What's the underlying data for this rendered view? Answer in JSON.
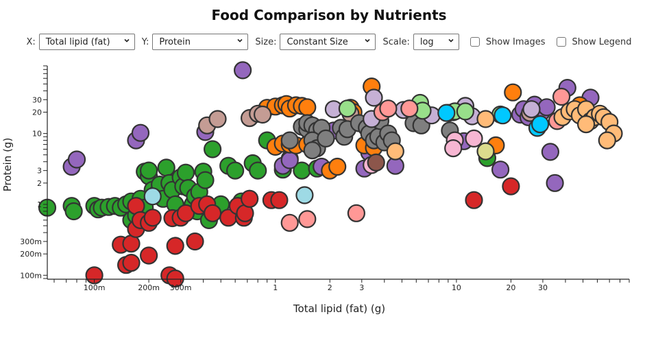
{
  "page": {
    "title": "Food Comparison by Nutrients"
  },
  "controls": {
    "x_label": "X:",
    "x_value": "Total lipid (fat)",
    "y_label": "Y:",
    "y_value": "Protein",
    "size_label": "Size:",
    "size_value": "Constant Size",
    "scale_label": "Scale:",
    "scale_value": "log",
    "show_images_label": "Show Images",
    "show_images_checked": false,
    "show_legend_label": "Show Legend",
    "show_legend_checked": false
  },
  "chart_data": {
    "type": "scatter",
    "title": "Food Comparison by Nutrients",
    "xlabel": "Total lipid (fat) (g)",
    "ylabel": "Protein (g)",
    "xscale": "log",
    "yscale": "log",
    "xlim": [
      0.055,
      90
    ],
    "ylim": [
      0.09,
      90
    ],
    "x_ticks": [
      {
        "value": 0.1,
        "label": "100m"
      },
      {
        "value": 0.2,
        "label": "200m"
      },
      {
        "value": 0.3,
        "label": "300m"
      },
      {
        "value": 1,
        "label": "1"
      },
      {
        "value": 2,
        "label": "2"
      },
      {
        "value": 3,
        "label": "3"
      },
      {
        "value": 10,
        "label": "10"
      },
      {
        "value": 20,
        "label": "20"
      },
      {
        "value": 30,
        "label": "30"
      }
    ],
    "y_ticks": [
      {
        "value": 0.1,
        "label": "100m"
      },
      {
        "value": 0.2,
        "label": "200m"
      },
      {
        "value": 0.3,
        "label": "300m"
      },
      {
        "value": 1,
        "label": "1"
      },
      {
        "value": 2,
        "label": "2"
      },
      {
        "value": 3,
        "label": "3"
      },
      {
        "value": 10,
        "label": "10"
      },
      {
        "value": 20,
        "label": "20"
      },
      {
        "value": 30,
        "label": "30"
      }
    ],
    "grid": false,
    "legend": "hidden",
    "marker": {
      "stroke": "#333333",
      "constant_size": true
    },
    "groups": [
      {
        "name": "group-green",
        "color": "#2ca02c",
        "points": [
          [
            0.055,
            0.9
          ],
          [
            0.075,
            0.95
          ],
          [
            0.077,
            0.8
          ],
          [
            0.1,
            0.95
          ],
          [
            0.105,
            0.85
          ],
          [
            0.11,
            0.9
          ],
          [
            0.12,
            0.92
          ],
          [
            0.13,
            0.95
          ],
          [
            0.14,
            0.9
          ],
          [
            0.15,
            1.0
          ],
          [
            0.16,
            0.6
          ],
          [
            0.16,
            1.1
          ],
          [
            0.17,
            0.7
          ],
          [
            0.18,
            1.2
          ],
          [
            0.19,
            0.9
          ],
          [
            0.19,
            2.9
          ],
          [
            0.2,
            2.5
          ],
          [
            0.2,
            3.0
          ],
          [
            0.21,
            1.6
          ],
          [
            0.22,
            1.4
          ],
          [
            0.23,
            1.9
          ],
          [
            0.24,
            1.2
          ],
          [
            0.25,
            3.3
          ],
          [
            0.26,
            2.0
          ],
          [
            0.27,
            1.6
          ],
          [
            0.28,
            1.0
          ],
          [
            0.3,
            2.4
          ],
          [
            0.31,
            1.8
          ],
          [
            0.32,
            2.8
          ],
          [
            0.33,
            1.7
          ],
          [
            0.35,
            1.0
          ],
          [
            0.36,
            1.3
          ],
          [
            0.37,
            0.8
          ],
          [
            0.38,
            1.5
          ],
          [
            0.4,
            2.9
          ],
          [
            0.41,
            2.2
          ],
          [
            0.43,
            0.6
          ],
          [
            0.45,
            6.0
          ],
          [
            0.5,
            1.0
          ],
          [
            0.55,
            3.5
          ],
          [
            0.6,
            3.0
          ],
          [
            0.65,
            1.1
          ],
          [
            0.72,
            1.2
          ],
          [
            0.75,
            3.8
          ],
          [
            0.8,
            3.0
          ],
          [
            0.9,
            8.0
          ],
          [
            1.1,
            3.1
          ],
          [
            1.2,
            4.4
          ],
          [
            1.4,
            3.0
          ],
          [
            1.7,
            3.2
          ],
          [
            14.8,
            4.5
          ]
        ]
      },
      {
        "name": "group-red",
        "color": "#d62728",
        "points": [
          [
            0.1,
            0.1
          ],
          [
            0.14,
            0.27
          ],
          [
            0.15,
            0.14
          ],
          [
            0.16,
            0.28
          ],
          [
            0.16,
            0.15
          ],
          [
            0.17,
            0.95
          ],
          [
            0.17,
            0.45
          ],
          [
            0.18,
            0.6
          ],
          [
            0.2,
            0.55
          ],
          [
            0.2,
            0.19
          ],
          [
            0.21,
            0.65
          ],
          [
            0.26,
            0.1
          ],
          [
            0.27,
            0.64
          ],
          [
            0.28,
            0.26
          ],
          [
            0.28,
            0.09
          ],
          [
            0.3,
            0.65
          ],
          [
            0.32,
            0.75
          ],
          [
            0.36,
            0.3
          ],
          [
            0.38,
            0.95
          ],
          [
            0.42,
            1.0
          ],
          [
            0.45,
            0.75
          ],
          [
            0.55,
            0.65
          ],
          [
            0.62,
            0.95
          ],
          [
            0.67,
            0.65
          ],
          [
            0.68,
            0.75
          ],
          [
            0.72,
            1.2
          ],
          [
            0.95,
            1.15
          ],
          [
            1.05,
            1.15
          ],
          [
            12.5,
            1.15
          ],
          [
            20,
            1.8
          ]
        ]
      },
      {
        "name": "group-purple",
        "color": "#9467bd",
        "points": [
          [
            0.075,
            3.4
          ],
          [
            0.08,
            4.3
          ],
          [
            0.17,
            8.0
          ],
          [
            0.18,
            10.2
          ],
          [
            0.41,
            10.5
          ],
          [
            0.66,
            78
          ],
          [
            1.1,
            3.5
          ],
          [
            1.2,
            4.2
          ],
          [
            1.8,
            3.4
          ],
          [
            2.1,
            11.0
          ],
          [
            3.1,
            3.2
          ],
          [
            3.3,
            5.4
          ],
          [
            4.6,
            3.5
          ],
          [
            11.0,
            7.8
          ],
          [
            17.5,
            3.1
          ],
          [
            22.5,
            18.5
          ],
          [
            23.5,
            22.0
          ],
          [
            25.0,
            17.0
          ],
          [
            27.0,
            25.5
          ],
          [
            29.5,
            20.0
          ],
          [
            31.5,
            23.5
          ],
          [
            33.0,
            5.5
          ],
          [
            35.0,
            2.0
          ],
          [
            41.0,
            44.0
          ],
          [
            55.0,
            32.0
          ]
        ]
      },
      {
        "name": "group-orange",
        "color": "#ff7f0e",
        "points": [
          [
            0.9,
            23.0
          ],
          [
            1.0,
            24.0
          ],
          [
            1.1,
            25.0
          ],
          [
            1.15,
            26.0
          ],
          [
            1.2,
            22.5
          ],
          [
            1.3,
            25.0
          ],
          [
            1.4,
            24.5
          ],
          [
            1.5,
            23.5
          ],
          [
            1.0,
            6.5
          ],
          [
            1.1,
            7.2
          ],
          [
            1.2,
            7.0
          ],
          [
            1.3,
            6.8
          ],
          [
            1.5,
            7.0
          ],
          [
            2.0,
            3.0
          ],
          [
            2.2,
            3.4
          ],
          [
            2.6,
            23.0
          ],
          [
            2.7,
            20.0
          ],
          [
            3.1,
            6.8
          ],
          [
            3.4,
            46.0
          ],
          [
            3.5,
            6.3
          ],
          [
            16.5,
            6.8
          ],
          [
            20.5,
            38.0
          ],
          [
            48.0,
            25.0
          ]
        ]
      },
      {
        "name": "group-rosybrown",
        "color": "#c49c94",
        "points": [
          [
            0.42,
            13.0
          ],
          [
            0.48,
            16.0
          ],
          [
            0.72,
            16.5
          ],
          [
            0.8,
            19.0
          ],
          [
            0.85,
            18.5
          ],
          [
            2.6,
            19.0
          ],
          [
            6.8,
            17.5
          ],
          [
            25.5,
            19.5
          ]
        ]
      },
      {
        "name": "group-gray",
        "color": "#7f7f7f",
        "points": [
          [
            1.4,
            12.5
          ],
          [
            1.5,
            11.5
          ],
          [
            1.5,
            14.0
          ],
          [
            1.6,
            13.0
          ],
          [
            1.7,
            11.0
          ],
          [
            1.8,
            12.0
          ],
          [
            1.6,
            8.0
          ],
          [
            1.7,
            6.2
          ],
          [
            1.9,
            8.5
          ],
          [
            2.3,
            12.0
          ],
          [
            2.4,
            9.0
          ],
          [
            2.5,
            11.5
          ],
          [
            2.9,
            14.0
          ],
          [
            3.2,
            12.0
          ],
          [
            3.3,
            10.0
          ],
          [
            3.5,
            8.0
          ],
          [
            3.7,
            9.0
          ],
          [
            3.8,
            15.0
          ],
          [
            4.0,
            7.5
          ],
          [
            4.2,
            10.0
          ],
          [
            4.4,
            8.0
          ],
          [
            5.8,
            14.0
          ],
          [
            6.4,
            13.0
          ],
          [
            9.2,
            11.0
          ],
          [
            1.2,
            8.0
          ],
          [
            1.6,
            5.8
          ]
        ]
      },
      {
        "name": "group-lavender",
        "color": "#c5b0d5",
        "points": [
          [
            3.5,
            32.0
          ],
          [
            3.4,
            16.0
          ],
          [
            2.1,
            22.0
          ],
          [
            5.1,
            21.5
          ],
          [
            6.4,
            22.0
          ],
          [
            7.3,
            18.0
          ],
          [
            9.0,
            19.5
          ],
          [
            9.6,
            20.0
          ],
          [
            11.2,
            24.5
          ],
          [
            12.2,
            17.5
          ],
          [
            26.0,
            22.0
          ]
        ]
      },
      {
        "name": "group-lightgreen",
        "color": "#98df8a",
        "points": [
          [
            2.5,
            22.5
          ],
          [
            6.3,
            27.0
          ],
          [
            6.5,
            21.0
          ],
          [
            9.8,
            20.5
          ],
          [
            11.2,
            20.5
          ],
          [
            17.5,
            18.5
          ]
        ]
      },
      {
        "name": "group-salmon",
        "color": "#ff9896",
        "points": [
          [
            3.9,
            20.0
          ],
          [
            4.2,
            22.5
          ],
          [
            5.5,
            22.5
          ],
          [
            1.2,
            0.55
          ],
          [
            1.5,
            0.62
          ],
          [
            2.8,
            0.75
          ],
          [
            36.0,
            15.0
          ],
          [
            38.0,
            33.0
          ]
        ]
      },
      {
        "name": "group-skyblue",
        "color": "#9edae5",
        "points": [
          [
            1.45,
            1.35
          ],
          [
            0.21,
            1.3
          ]
        ]
      },
      {
        "name": "group-cyan",
        "color": "#00c8ff",
        "points": [
          [
            8.8,
            19.5
          ],
          [
            18.0,
            18.0
          ],
          [
            28.0,
            12.0
          ],
          [
            29.0,
            13.5
          ]
        ]
      },
      {
        "name": "group-pink",
        "color": "#f7b6d2",
        "points": [
          [
            9.8,
            8.0
          ],
          [
            9.6,
            6.2
          ],
          [
            12.5,
            8.5
          ],
          [
            3.4,
            3.6
          ]
        ]
      },
      {
        "name": "group-olive",
        "color": "#dbdb8d",
        "points": [
          [
            14.5,
            5.6
          ]
        ]
      },
      {
        "name": "group-brown",
        "color": "#8c564b",
        "points": [
          [
            3.6,
            3.9
          ]
        ]
      },
      {
        "name": "group-peach",
        "color": "#ffbb78",
        "points": [
          [
            4.6,
            5.6
          ],
          [
            14.5,
            16.0
          ],
          [
            38.5,
            17.0
          ],
          [
            42.0,
            20.5
          ],
          [
            45.0,
            22.0
          ],
          [
            48.0,
            18.0
          ],
          [
            52.0,
            22.0
          ],
          [
            55.0,
            15.0
          ],
          [
            58.0,
            17.0
          ],
          [
            62.0,
            19.0
          ],
          [
            65.0,
            17.0
          ],
          [
            70.0,
            14.5
          ],
          [
            74.0,
            10.0
          ],
          [
            68.0,
            8.0
          ],
          [
            52.0,
            13.5
          ]
        ]
      }
    ]
  }
}
